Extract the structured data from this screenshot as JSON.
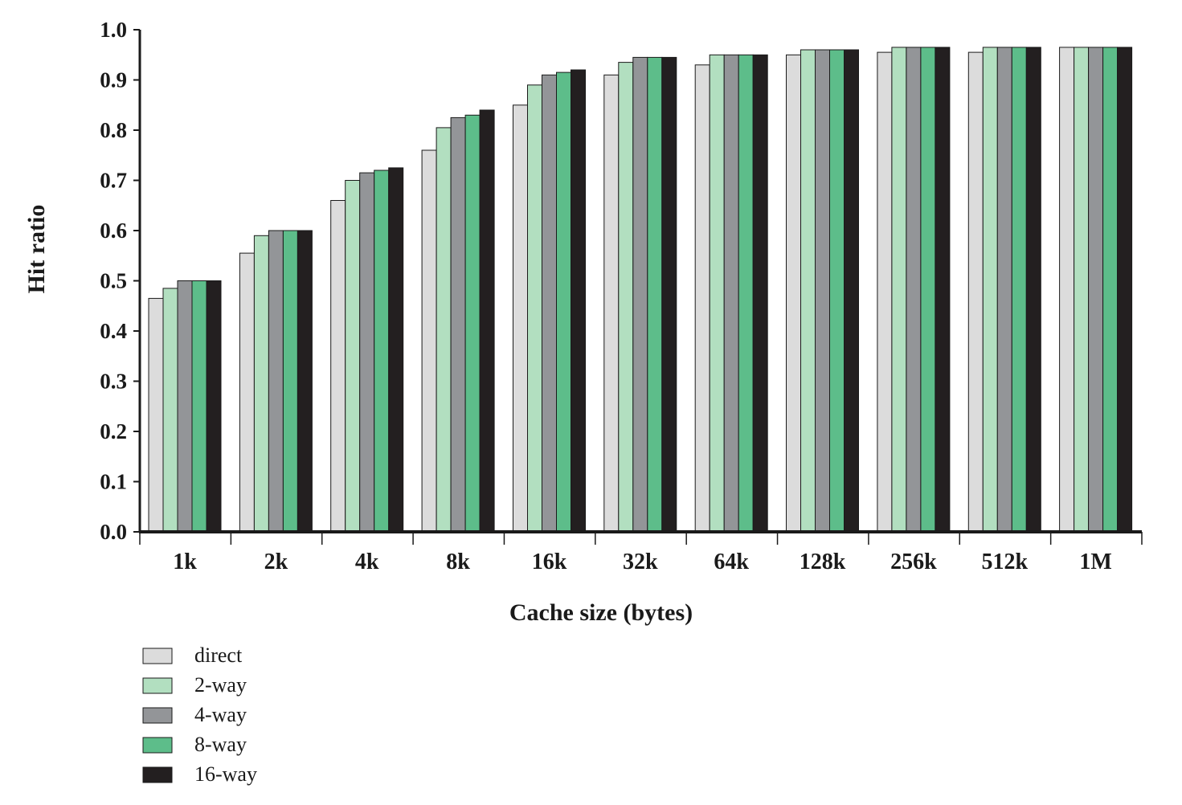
{
  "chart_data": {
    "type": "bar",
    "title": "",
    "xlabel": "Cache size (bytes)",
    "ylabel": "Hit ratio",
    "ylim": [
      0,
      1.0
    ],
    "y_ticks": [
      "0.0",
      "0.1",
      "0.2",
      "0.3",
      "0.4",
      "0.5",
      "0.6",
      "0.7",
      "0.8",
      "0.9",
      "1.0"
    ],
    "categories": [
      "1k",
      "2k",
      "4k",
      "8k",
      "16k",
      "32k",
      "64k",
      "128k",
      "256k",
      "512k",
      "1M"
    ],
    "grid": false,
    "legend_position": "bottom-left",
    "series": [
      {
        "name": "direct",
        "color": "#dcdcdc",
        "values": [
          0.465,
          0.555,
          0.66,
          0.76,
          0.85,
          0.91,
          0.93,
          0.95,
          0.955,
          0.955,
          0.965
        ]
      },
      {
        "name": "2-way",
        "color": "#b2dfc0",
        "values": [
          0.485,
          0.59,
          0.7,
          0.805,
          0.89,
          0.935,
          0.95,
          0.96,
          0.965,
          0.965,
          0.965
        ]
      },
      {
        "name": "4-way",
        "color": "#939598",
        "values": [
          0.5,
          0.6,
          0.715,
          0.825,
          0.91,
          0.945,
          0.95,
          0.96,
          0.965,
          0.965,
          0.965
        ]
      },
      {
        "name": "8-way",
        "color": "#5dbd8a",
        "values": [
          0.5,
          0.6,
          0.72,
          0.83,
          0.915,
          0.945,
          0.95,
          0.96,
          0.965,
          0.965,
          0.965
        ]
      },
      {
        "name": "16-way",
        "color": "#231f20",
        "values": [
          0.5,
          0.6,
          0.725,
          0.84,
          0.92,
          0.945,
          0.95,
          0.96,
          0.965,
          0.965,
          0.965
        ]
      }
    ]
  }
}
